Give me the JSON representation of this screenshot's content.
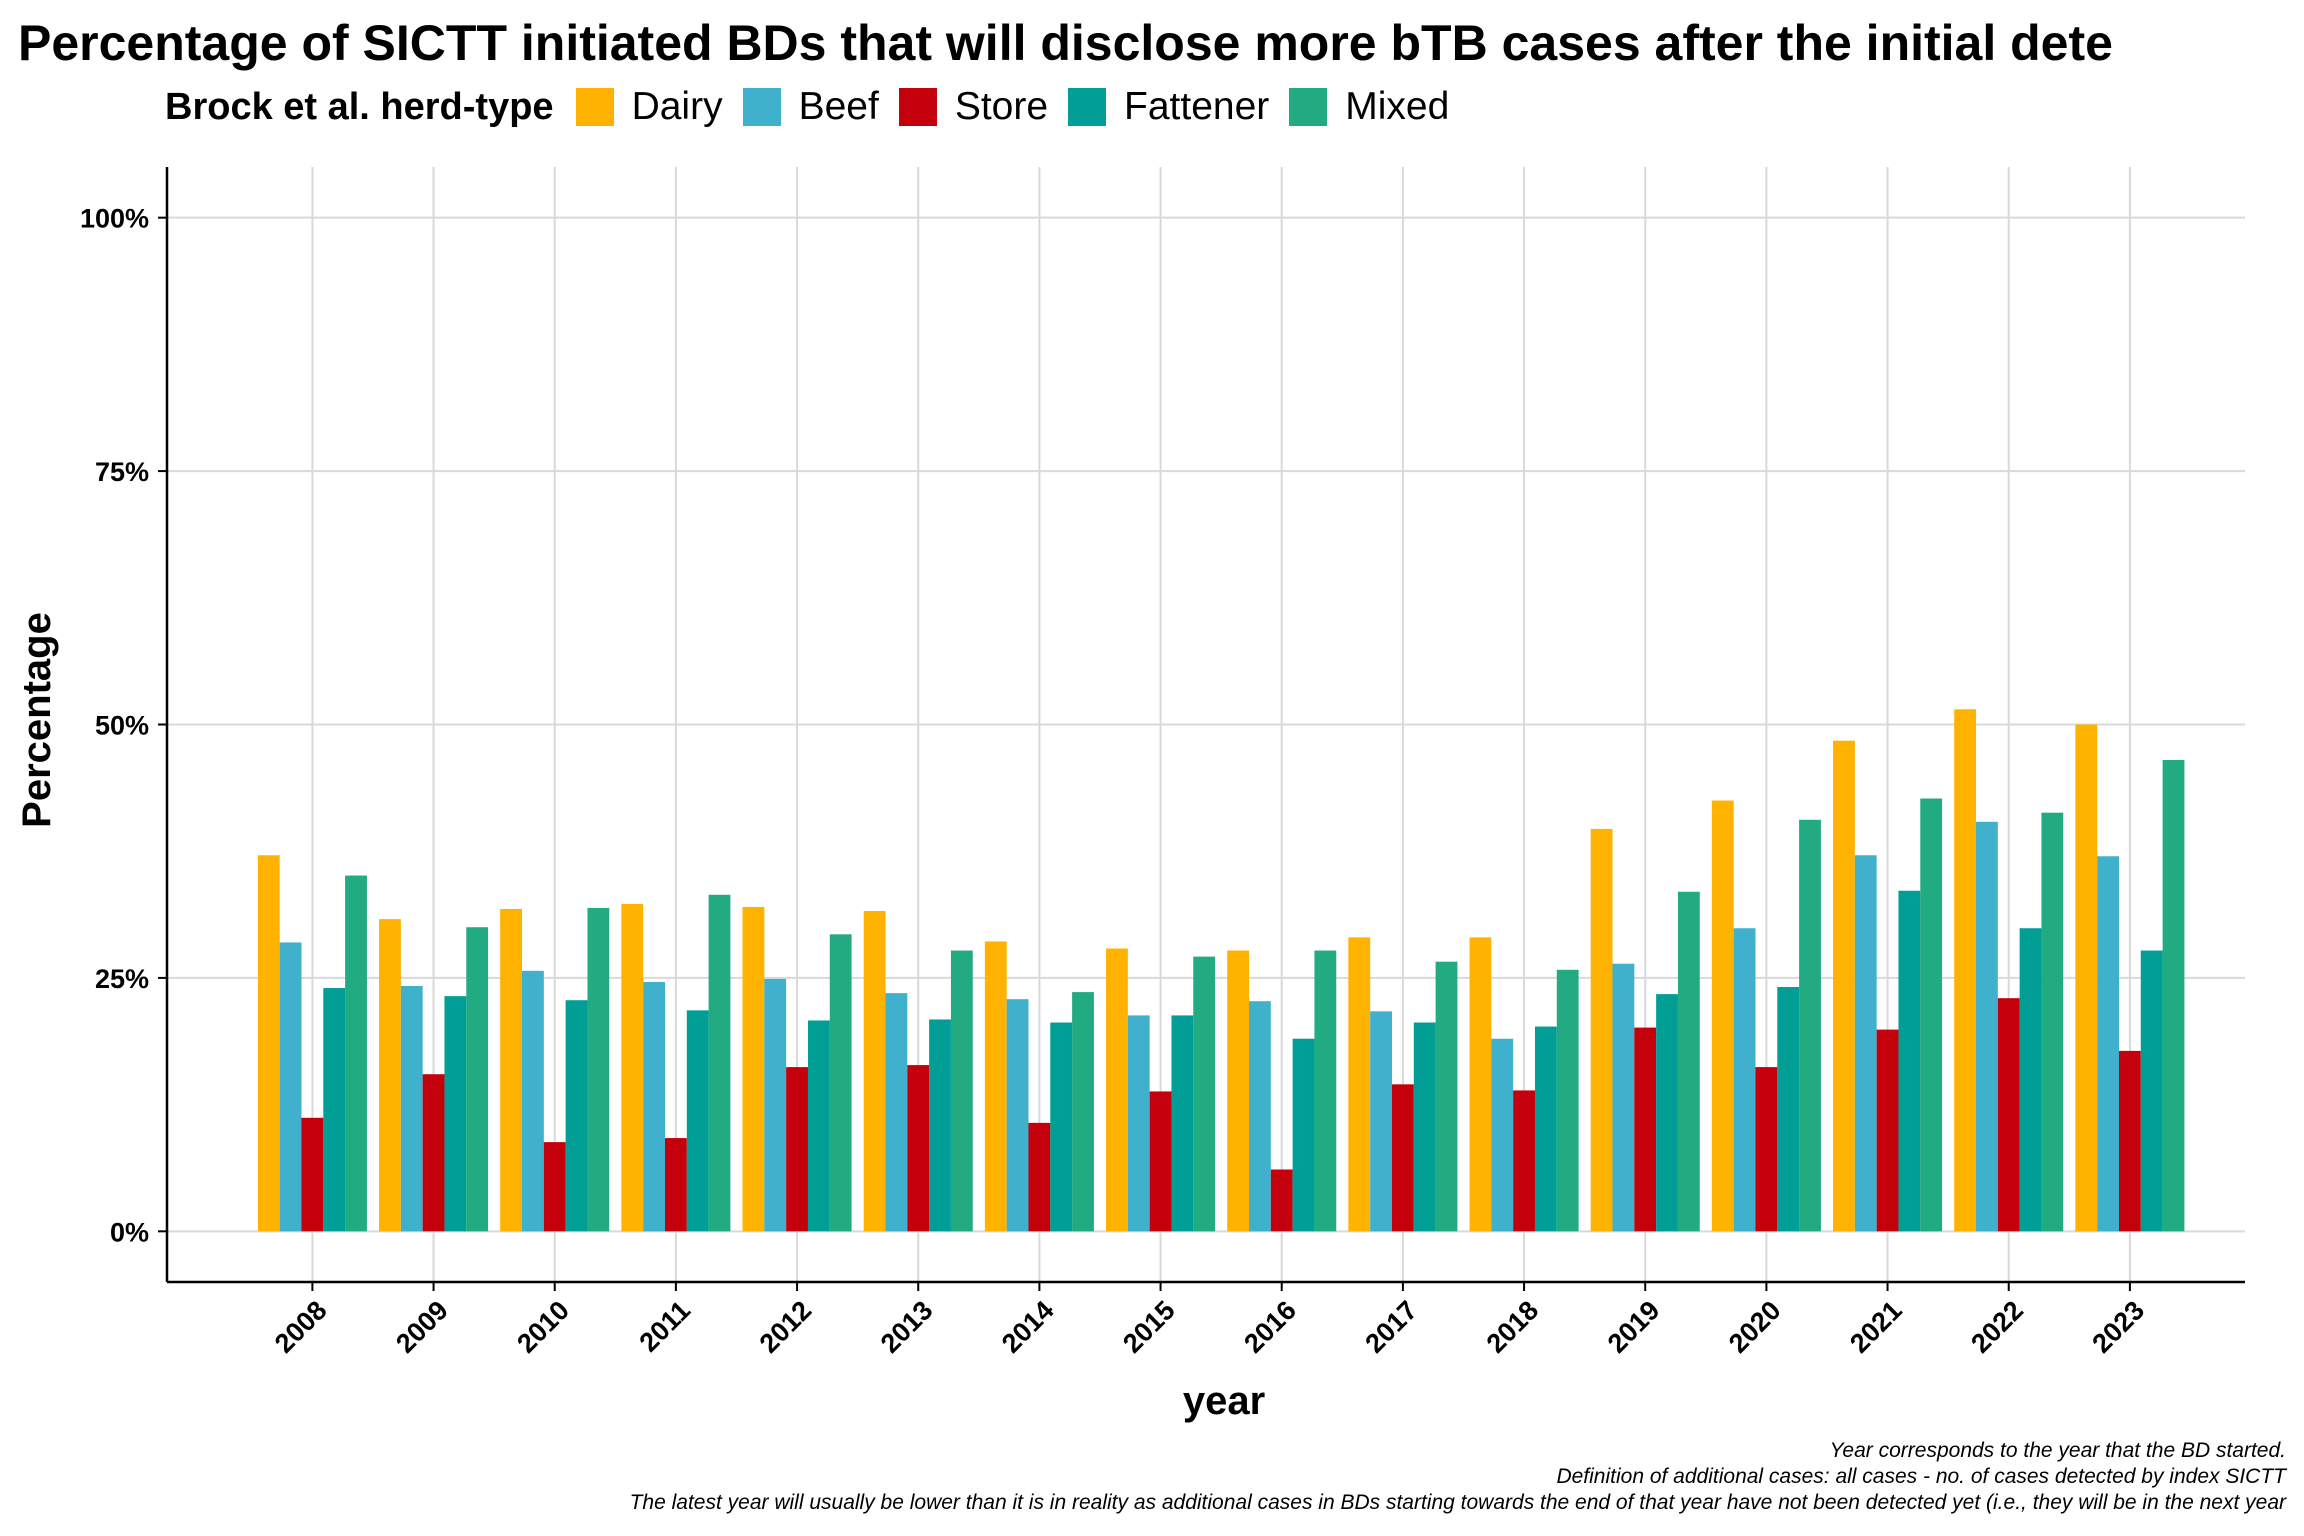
{
  "chart_data": {
    "type": "bar",
    "title": "Percentage of SICTT initiated BDs that will disclose more bTB cases after the initial dete",
    "legend_title": "Brock et al. herd-type",
    "legend_position": "top-left",
    "xlabel": "year",
    "ylabel": "Percentage",
    "ylim": [
      -5,
      105
    ],
    "yticks": [
      0,
      25,
      50,
      75,
      100
    ],
    "ytick_labels": [
      "0%",
      "25%",
      "50%",
      "75%",
      "100%"
    ],
    "grid": true,
    "categories": [
      "2008",
      "2009",
      "2010",
      "2011",
      "2012",
      "2013",
      "2014",
      "2015",
      "2016",
      "2017",
      "2018",
      "2019",
      "2020",
      "2021",
      "2022",
      "2023"
    ],
    "series": [
      {
        "name": "Dairy",
        "color": "#FFB300",
        "values": [
          37.1,
          30.8,
          31.8,
          32.3,
          32.0,
          31.6,
          28.6,
          27.9,
          27.7,
          29.0,
          29.0,
          39.7,
          42.5,
          48.4,
          51.5,
          50.0
        ]
      },
      {
        "name": "Beef",
        "color": "#3FB1CC",
        "values": [
          28.5,
          24.2,
          25.7,
          24.6,
          24.9,
          23.5,
          22.9,
          21.3,
          22.7,
          21.7,
          19.0,
          26.4,
          29.9,
          37.1,
          40.4,
          37.0
        ]
      },
      {
        "name": "Store",
        "color": "#C4000C",
        "values": [
          11.2,
          15.5,
          8.8,
          9.2,
          16.2,
          16.4,
          10.7,
          13.8,
          6.1,
          14.5,
          13.9,
          20.1,
          16.2,
          19.9,
          23.0,
          17.8
        ]
      },
      {
        "name": "Fattener",
        "color": "#009E94",
        "values": [
          24.0,
          23.2,
          22.8,
          21.8,
          20.8,
          20.9,
          20.6,
          21.3,
          19.0,
          20.6,
          20.2,
          23.4,
          24.1,
          33.6,
          29.9,
          27.7
        ]
      },
      {
        "name": "Mixed",
        "color": "#22AA80",
        "values": [
          35.1,
          30.0,
          31.9,
          33.2,
          29.3,
          27.7,
          23.6,
          27.1,
          27.7,
          26.6,
          25.8,
          33.5,
          40.6,
          42.7,
          41.3,
          46.5
        ]
      }
    ]
  },
  "caption": {
    "line1": "Year corresponds to the year that the BD started.",
    "line2": "Definition of additional cases: all cases - no. of cases detected by index SICTT",
    "line3": "The latest year will usually be lower than it is in reality as additional cases in  BDs starting towards the end of that year have not been detected yet (i.e., they will be in the next year"
  }
}
